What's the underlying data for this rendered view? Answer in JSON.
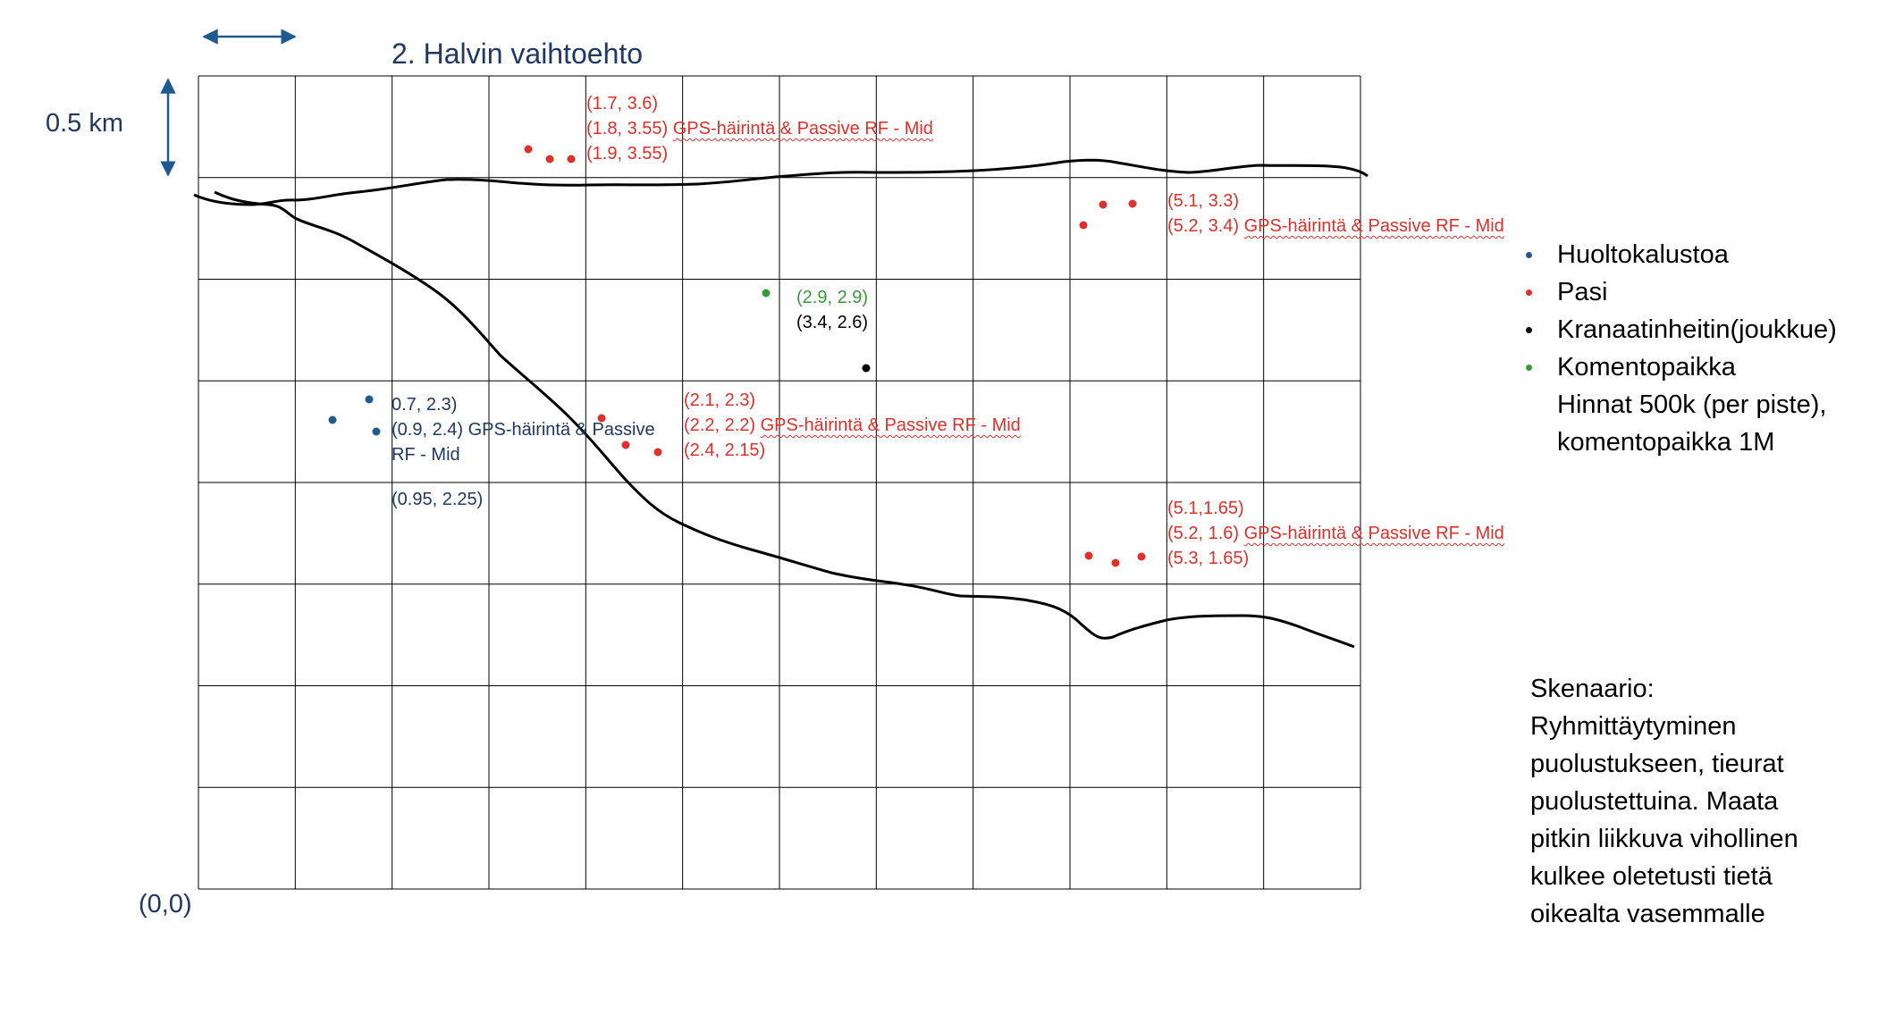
{
  "title": "2. Halvin vaihtoehto",
  "scale_label": "0.5 km",
  "origin_label": "(0,0)",
  "colors": {
    "navy": "#1f3864",
    "red": "#e0302b",
    "green": "#3a9a3a",
    "black": "#000000",
    "grid": "#000000"
  },
  "annotations": {
    "top": {
      "c1": "(1.7, 3.6)",
      "c2": "(1.8, 3.55)",
      "label": "GPS-häirintä & Passive RF - Mid",
      "c3": "(1.9, 3.55)"
    },
    "right_top": {
      "c1": "(5.1, 3.3)",
      "c2": "(5.2, 3.4)",
      "label": "GPS-häirintä & Passive RF - Mid"
    },
    "command": {
      "green": "(2.9, 2.9)",
      "black": "(3.4, 2.6)"
    },
    "left": {
      "c1": "0.7, 2.3)",
      "c2": "(0.9, 2.4)",
      "label_a": "GPS-häirintä & Passive",
      "label_b": "RF - Mid",
      "c3": "(0.95, 2.25)"
    },
    "middle": {
      "c1": "(2.1, 2.3)",
      "c2": "(2.2, 2.2)",
      "label": "GPS-häirintä & Passive RF - Mid",
      "c3": "(2.4, 2.15)"
    },
    "right_bottom": {
      "c1": "(5.1,1.65)",
      "c2": "(5.2, 1.6)",
      "label": "GPS-häirintä & Passive RF - Mid",
      "c3": "(5.3, 1.65)"
    }
  },
  "legend": [
    {
      "label": "Huoltokalustoa",
      "color": "#1f5a8f"
    },
    {
      "label": "Pasi",
      "color": "#e0302b"
    },
    {
      "label": "Kranaatinheitin(joukkue)",
      "color": "#000000"
    },
    {
      "label": "Komentopaikka",
      "color": "#3a9a3a"
    }
  ],
  "legend_note": {
    "line1": "Hinnat 500k (per piste),",
    "line2": "komentopaikka 1M"
  },
  "scenario": [
    "Skenaario:",
    "Ryhmittäytyminen",
    "puolustukseen, tieurat",
    "puolustettuina. Maata",
    "pitkin liikkuva vihollinen",
    "kulkee oletetusti tietä",
    "oikealta vasemmalle"
  ]
}
